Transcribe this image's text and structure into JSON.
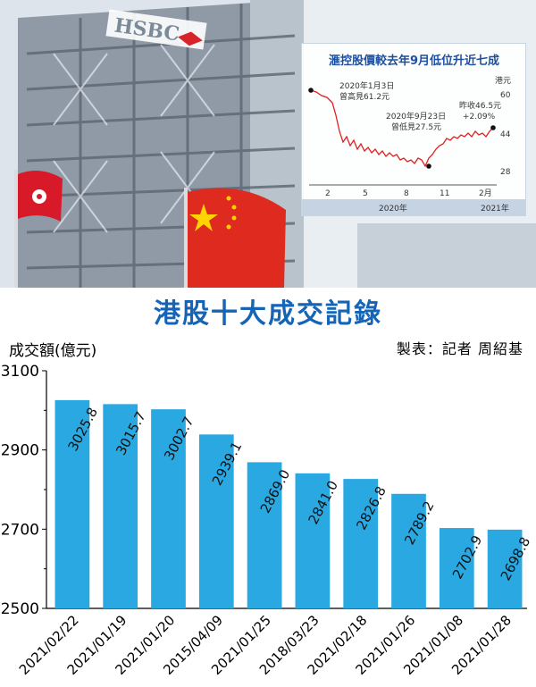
{
  "headline": "港股十大成交記錄",
  "y_axis_label": "成交額(億元)",
  "credit": "製表：記者 周紹基",
  "colors": {
    "bar": "#29a8e2",
    "title": "#1664b5",
    "inset_title": "#1d4fa0",
    "inset_line": "#e02020"
  },
  "photo": {
    "building_sign": "HSBC",
    "flag_icons": [
      "hong-kong-flag-icon",
      "china-flag-icon"
    ]
  },
  "inset": {
    "title": "滙控股價較去年9月低位升近七成",
    "unit": "港元",
    "y_ticks": [
      "60",
      "44",
      "28"
    ],
    "x_ticks": [
      "2",
      "5",
      "8",
      "11",
      "2月"
    ],
    "year_labels": [
      "2020年",
      "2021年"
    ],
    "annotations": {
      "high_date": "2020年1月3日",
      "high_value": "曾高見61.2元",
      "low_date": "2020年9月23日",
      "low_value": "曾低見27.5元",
      "close_value": "昨收46.5元",
      "close_change": "+2.09%"
    }
  },
  "chart_data": {
    "type": "bar",
    "categories": [
      "2021/02/22",
      "2021/01/19",
      "2021/01/20",
      "2015/04/09",
      "2021/01/25",
      "2018/03/23",
      "2021/02/18",
      "2021/01/26",
      "2021/01/08",
      "2021/01/28"
    ],
    "values": [
      3025.8,
      3015.7,
      3002.7,
      2939.1,
      2869.0,
      2841.0,
      2826.8,
      2789.2,
      2702.9,
      2698.8
    ],
    "data_labels": [
      "3025.8",
      "3015.7",
      "3002.7",
      "2939.1",
      "2869.0",
      "2841.0",
      "2826.8",
      "2789.2",
      "2702.9",
      "2698.8"
    ],
    "ylabel": "成交額(億元)",
    "ylim": [
      2500,
      3100
    ],
    "y_ticks": [
      2500,
      2700,
      2900,
      3100
    ],
    "y_tick_labels": [
      "2500",
      "2700",
      "2900",
      "3100"
    ],
    "grid": false,
    "legend": "none"
  }
}
